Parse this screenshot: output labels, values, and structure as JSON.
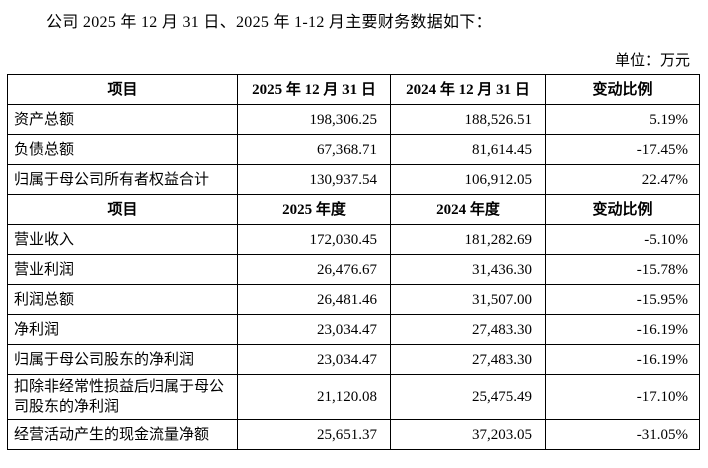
{
  "page": {
    "title": "公司 2025 年 12 月 31 日、2025 年 1-12 月主要财务数据如下：",
    "unit_label": "单位：万元"
  },
  "table": {
    "sections": [
      {
        "header": [
          "项目",
          "2025 年 12 月 31 日",
          "2024 年 12 月 31 日",
          "变动比例"
        ],
        "rows": [
          {
            "item": "资产总额",
            "current": "198,306.25",
            "prior": "188,526.51",
            "change": "5.19%"
          },
          {
            "item": "负债总额",
            "current": "67,368.71",
            "prior": "81,614.45",
            "change": "-17.45%"
          },
          {
            "item": "归属于母公司所有者权益合计",
            "current": "130,937.54",
            "prior": "106,912.05",
            "change": "22.47%"
          }
        ]
      },
      {
        "header": [
          "项目",
          "2025 年度",
          "2024 年度",
          "变动比例"
        ],
        "rows": [
          {
            "item": "营业收入",
            "current": "172,030.45",
            "prior": "181,282.69",
            "change": "-5.10%"
          },
          {
            "item": "营业利润",
            "current": "26,476.67",
            "prior": "31,436.30",
            "change": "-15.78%"
          },
          {
            "item": "利润总额",
            "current": "26,481.46",
            "prior": "31,507.00",
            "change": "-15.95%"
          },
          {
            "item": "净利润",
            "current": "23,034.47",
            "prior": "27,483.30",
            "change": "-16.19%"
          },
          {
            "item": "归属于母公司股东的净利润",
            "current": "23,034.47",
            "prior": "27,483.30",
            "change": "-16.19%"
          },
          {
            "item": "扣除非经常性损益后归属于母公司股东的净利润",
            "current": "21,120.08",
            "prior": "25,475.49",
            "change": "-17.10%"
          },
          {
            "item": "经营活动产生的现金流量净额",
            "current": "25,651.37",
            "prior": "37,203.05",
            "change": "-31.05%"
          }
        ]
      }
    ]
  }
}
